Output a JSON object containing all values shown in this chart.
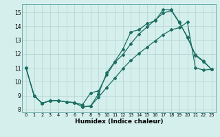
{
  "xlabel": "Humidex (Indice chaleur)",
  "background_color": "#d5efed",
  "grid_color": "#b8d8d4",
  "line_color": "#1a6e62",
  "xlim": [
    -0.5,
    23.5
  ],
  "ylim": [
    7.8,
    15.6
  ],
  "yticks": [
    8,
    9,
    10,
    11,
    12,
    13,
    14,
    15
  ],
  "xticks": [
    0,
    1,
    2,
    3,
    4,
    5,
    6,
    7,
    8,
    9,
    10,
    11,
    12,
    13,
    14,
    15,
    16,
    17,
    18,
    19,
    20,
    21,
    22,
    23
  ],
  "line1_x": [
    0,
    1,
    2,
    3,
    4,
    5,
    6,
    7,
    8,
    9,
    10,
    11,
    12,
    13,
    14,
    15,
    16,
    17,
    18,
    19,
    20,
    21,
    22,
    23
  ],
  "line1_y": [
    11.0,
    9.0,
    8.45,
    8.65,
    8.65,
    8.55,
    8.5,
    8.2,
    8.25,
    9.15,
    10.65,
    11.45,
    12.35,
    13.6,
    13.75,
    14.2,
    14.4,
    15.2,
    15.2,
    14.3,
    13.2,
    11.95,
    11.5,
    10.9
  ],
  "line2_x": [
    0,
    1,
    2,
    3,
    4,
    5,
    6,
    7,
    8,
    9,
    10,
    11,
    12,
    13,
    14,
    15,
    16,
    17,
    18,
    19,
    20,
    21,
    22,
    23
  ],
  "line2_y": [
    11.0,
    9.0,
    8.45,
    8.65,
    8.65,
    8.55,
    8.5,
    8.2,
    8.25,
    8.9,
    9.6,
    10.25,
    10.95,
    11.55,
    12.05,
    12.5,
    12.95,
    13.4,
    13.75,
    13.9,
    14.3,
    11.0,
    10.85,
    10.9
  ],
  "line3_x": [
    0,
    1,
    2,
    3,
    4,
    5,
    6,
    7,
    8,
    9,
    10,
    11,
    12,
    13,
    14,
    15,
    16,
    17,
    18,
    19,
    20,
    21,
    22,
    23
  ],
  "line3_y": [
    11.0,
    9.0,
    8.45,
    8.65,
    8.65,
    8.55,
    8.5,
    8.35,
    9.2,
    9.35,
    10.5,
    11.4,
    11.95,
    12.75,
    13.45,
    13.95,
    14.45,
    14.95,
    15.15,
    14.25,
    13.25,
    11.9,
    11.45,
    10.9
  ]
}
